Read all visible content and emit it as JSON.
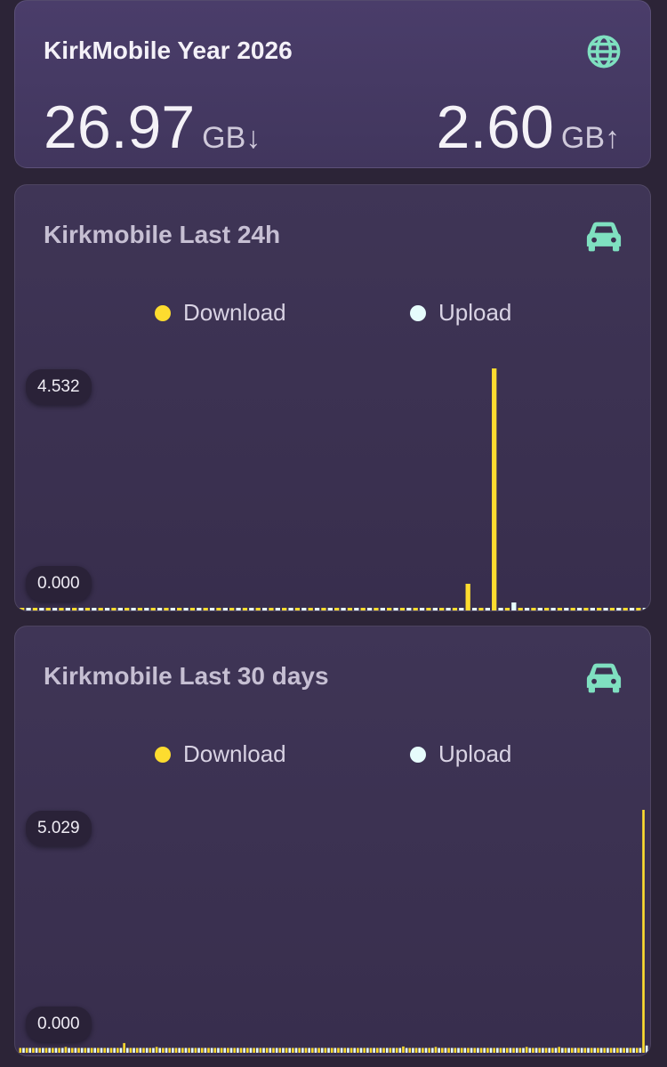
{
  "year_card": {
    "title": "KirkMobile Year 2026",
    "icon": "globe-icon",
    "download_value": "26.97",
    "download_unit": "GB↓",
    "upload_value": "2.60",
    "upload_unit": "GB↑"
  },
  "colors": {
    "download": "#fddc2f",
    "upload": "#e6fcfc",
    "icon": "#7fe0c0"
  },
  "card_24h": {
    "title": "Kirkmobile Last 24h",
    "icon": "car-icon",
    "legend": {
      "download": "Download",
      "upload": "Upload"
    },
    "max_label": "4.532",
    "min_label": "0.000"
  },
  "card_30d": {
    "title": "Kirkmobile Last 30 days",
    "icon": "car-icon",
    "legend": {
      "download": "Download",
      "upload": "Upload"
    },
    "max_label": "5.029",
    "min_label": "0.000"
  },
  "chart_data": [
    {
      "type": "bar",
      "title": "Kirkmobile Last 24h",
      "ylim": [
        0,
        4.532
      ],
      "series": [
        {
          "name": "Download",
          "values": [
            0.05,
            0.05,
            0.05,
            0.05,
            0.05,
            0.05,
            0.05,
            0.05,
            0.05,
            0.05,
            0.05,
            0.05,
            0.05,
            0.05,
            0.05,
            0.05,
            0.05,
            0.05,
            0.05,
            0.05,
            0.05,
            0.05,
            0.05,
            0.05,
            0.05,
            0.05,
            0.05,
            0.05,
            0.05,
            0.05,
            0.05,
            0.05,
            0.05,
            0.05,
            0.5,
            0.05,
            4.532,
            0.05,
            0.05,
            0.05,
            0.05,
            0.05,
            0.05,
            0.05,
            0.05,
            0.05,
            0.05,
            0.05
          ]
        },
        {
          "name": "Upload",
          "values": [
            0.05,
            0.05,
            0.05,
            0.05,
            0.05,
            0.05,
            0.05,
            0.05,
            0.05,
            0.05,
            0.05,
            0.05,
            0.05,
            0.05,
            0.05,
            0.05,
            0.05,
            0.05,
            0.05,
            0.05,
            0.05,
            0.05,
            0.05,
            0.05,
            0.05,
            0.05,
            0.05,
            0.05,
            0.05,
            0.05,
            0.05,
            0.05,
            0.05,
            0.05,
            0.05,
            0.05,
            0.05,
            0.15,
            0.05,
            0.05,
            0.05,
            0.05,
            0.05,
            0.05,
            0.05,
            0.05,
            0.05,
            0.05
          ]
        }
      ]
    },
    {
      "type": "bar",
      "title": "Kirkmobile Last 30 days",
      "ylim": [
        0,
        5.029
      ],
      "series": [
        {
          "name": "Download",
          "values": [
            0.1,
            0.1,
            0.1,
            0.1,
            0.1,
            0.1,
            0.1,
            0.12,
            0.1,
            0.1,
            0.1,
            0.1,
            0.1,
            0.1,
            0.1,
            0.1,
            0.2,
            0.1,
            0.1,
            0.1,
            0.1,
            0.12,
            0.1,
            0.1,
            0.1,
            0.1,
            0.1,
            0.1,
            0.1,
            0.1,
            0.1,
            0.1,
            0.1,
            0.1,
            0.1,
            0.1,
            0.1,
            0.1,
            0.1,
            0.1,
            0.1,
            0.1,
            0.1,
            0.1,
            0.1,
            0.1,
            0.1,
            0.1,
            0.1,
            0.1,
            0.1,
            0.1,
            0.1,
            0.1,
            0.1,
            0.1,
            0.1,
            0.1,
            0.1,
            0.13,
            0.1,
            0.1,
            0.1,
            0.1,
            0.12,
            0.1,
            0.1,
            0.1,
            0.1,
            0.1,
            0.1,
            0.1,
            0.1,
            0.1,
            0.1,
            0.1,
            0.1,
            0.1,
            0.12,
            0.1,
            0.1,
            0.1,
            0.1,
            0.12,
            0.1,
            0.1,
            0.1,
            0.1,
            0.1,
            0.1,
            0.1,
            0.1,
            0.1,
            0.1,
            0.1,
            0.1,
            5.029
          ]
        },
        {
          "name": "Upload",
          "values": [
            0.1,
            0.1,
            0.1,
            0.1,
            0.1,
            0.1,
            0.1,
            0.1,
            0.1,
            0.1,
            0.1,
            0.1,
            0.1,
            0.1,
            0.1,
            0.1,
            0.1,
            0.1,
            0.1,
            0.1,
            0.1,
            0.1,
            0.1,
            0.1,
            0.1,
            0.1,
            0.1,
            0.1,
            0.1,
            0.1,
            0.1,
            0.1,
            0.1,
            0.1,
            0.1,
            0.1,
            0.1,
            0.1,
            0.1,
            0.1,
            0.1,
            0.1,
            0.1,
            0.1,
            0.1,
            0.1,
            0.1,
            0.1,
            0.1,
            0.1,
            0.1,
            0.1,
            0.1,
            0.1,
            0.1,
            0.1,
            0.1,
            0.1,
            0.1,
            0.1,
            0.1,
            0.1,
            0.1,
            0.1,
            0.1,
            0.1,
            0.1,
            0.1,
            0.1,
            0.1,
            0.1,
            0.1,
            0.1,
            0.1,
            0.1,
            0.1,
            0.1,
            0.1,
            0.1,
            0.1,
            0.1,
            0.1,
            0.1,
            0.1,
            0.1,
            0.1,
            0.1,
            0.1,
            0.1,
            0.1,
            0.1,
            0.1,
            0.1,
            0.1,
            0.1,
            0.1,
            0.15
          ]
        }
      ]
    }
  ]
}
